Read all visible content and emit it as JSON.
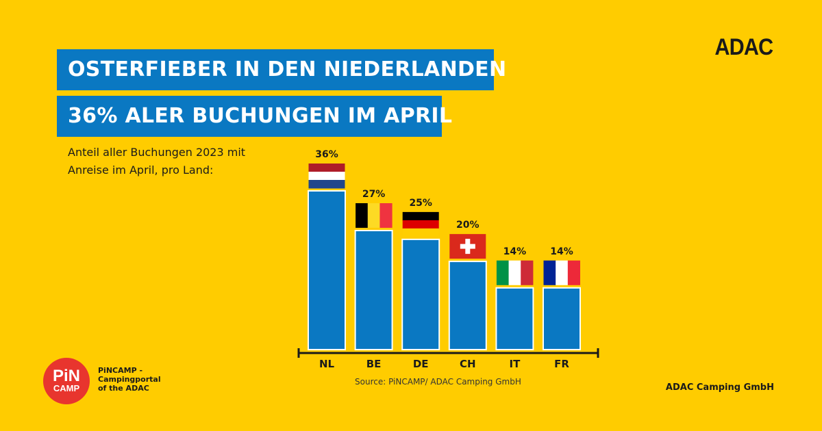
{
  "headline": {
    "line1": "OSTERFIEBER IN DEN NIEDERLANDEN",
    "line2": "36% ALER BUCHUNGEN IM APRIL"
  },
  "subtitle": {
    "line1": "Anteil aller Buchungen 2023 mit",
    "line2": "Anreise im April, pro Land:"
  },
  "brand": "ADAC",
  "company": "ADAC Camping GmbH",
  "source": "Source: PiNCAMP/ ADAC Camping GmbH",
  "logo": {
    "word1": "PiN",
    "word2": "CAMP",
    "caption_line1": "PiNCAMP -",
    "caption_line2": "Campingportal",
    "caption_line3": "of the ADAC"
  },
  "colors": {
    "background": "#FFCC00",
    "headline_bg": "#0A78C2",
    "bar": "#0A78C2",
    "logo": "#E8352E"
  },
  "chart_data": {
    "type": "bar",
    "categories": [
      "NL",
      "BE",
      "DE",
      "CH",
      "IT",
      "FR"
    ],
    "values": [
      36,
      27,
      25,
      20,
      14,
      14
    ],
    "value_labels": [
      "36%",
      "27%",
      "25%",
      "20%",
      "14%",
      "14%"
    ],
    "flags": [
      "netherlands-flag",
      "belgium-flag",
      "germany-flag",
      "switzerland-flag",
      "italy-flag",
      "france-flag"
    ],
    "unit": "%",
    "ylim": [
      0,
      36
    ],
    "grid": false,
    "legend": "none"
  }
}
